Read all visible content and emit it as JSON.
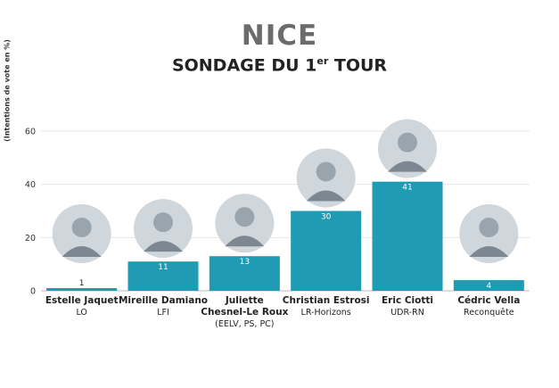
{
  "title": "NICE",
  "subtitle_main": "SONDAGE DU 1",
  "subtitle_sup": "er",
  "subtitle_end": " TOUR",
  "chart_data": {
    "type": "bar",
    "ylabel": "(Intentions de vote en %)",
    "ylim": [
      0,
      60
    ],
    "yticks": [
      0,
      20,
      40,
      60
    ],
    "grid": true,
    "bar_color": "#1f9bb3",
    "categories": [
      "Estelle Jaquet",
      "Mireille Damiano",
      "Juliette Chesnel-Le Roux",
      "Christian Estrosi",
      "Eric Ciotti",
      "Cédric Vella"
    ],
    "values": [
      1,
      11,
      13,
      30,
      41,
      4
    ],
    "candidates": [
      {
        "name": "Estelle Jaquet",
        "party": "LO",
        "photo": "portrait-photo"
      },
      {
        "name": "Mireille Damiano",
        "party": "LFI",
        "photo": "portrait-photo"
      },
      {
        "name": "Juliette Chesnel-Le Roux",
        "party": "(EELV, PS, PC)",
        "photo": "portrait-photo"
      },
      {
        "name": "Christian Estrosi",
        "party": "LR-Horizons",
        "photo": "portrait-photo"
      },
      {
        "name": "Eric Ciotti",
        "party": "UDR-RN",
        "photo": "portrait-photo"
      },
      {
        "name": "Cédric Vella",
        "party": "Reconquête",
        "photo": "portrait-photo"
      }
    ]
  }
}
